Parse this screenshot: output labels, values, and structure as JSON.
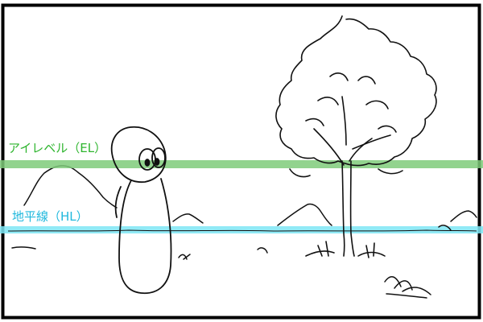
{
  "labels": {
    "eye_level": "アイレベル（EL）",
    "horizon": "地平線（HL）"
  },
  "colors": {
    "eye_level": "#7fcb7a",
    "horizon": "#7ee6f5",
    "eye_level_text": "#2eb52e",
    "horizon_text": "#1fb8dd",
    "ink": "#111111",
    "frame": "#000000"
  }
}
